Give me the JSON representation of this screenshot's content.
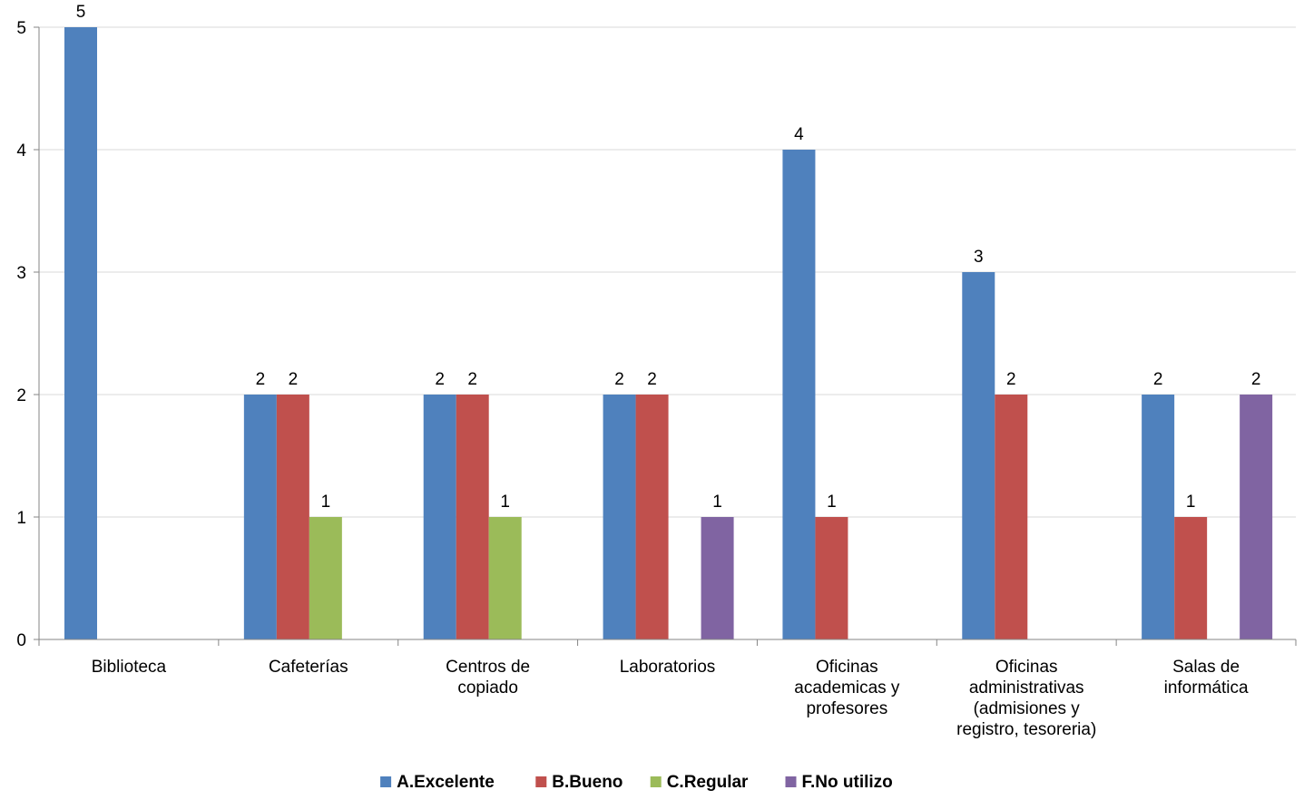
{
  "chart_data": {
    "type": "bar",
    "categories": [
      [
        "Biblioteca"
      ],
      [
        "Cafeterías"
      ],
      [
        "Centros de",
        "copiado"
      ],
      [
        "Laboratorios"
      ],
      [
        "Oficinas",
        "academicas y",
        "profesores"
      ],
      [
        "Oficinas",
        "administrativas",
        "(admisiones y",
        "registro, tesoreria)"
      ],
      [
        "Salas de",
        "informática"
      ]
    ],
    "series": [
      {
        "name": "A.Excelente",
        "color": "#4F81BD",
        "values": [
          5,
          2,
          2,
          2,
          4,
          3,
          2
        ]
      },
      {
        "name": "B.Bueno",
        "color": "#C0504D",
        "values": [
          null,
          2,
          2,
          2,
          1,
          2,
          1
        ]
      },
      {
        "name": "C.Regular",
        "color": "#9BBB59",
        "values": [
          null,
          1,
          1,
          null,
          null,
          null,
          null
        ]
      },
      {
        "name": "F.No utilizo",
        "color": "#8064A2",
        "values": [
          null,
          null,
          null,
          1,
          null,
          null,
          2
        ]
      }
    ],
    "ylim": [
      0,
      5
    ],
    "yticks": [
      "0",
      "1",
      "2",
      "3",
      "4",
      "5"
    ],
    "grid": true,
    "legend_position": "bottom",
    "xlabel": "",
    "ylabel": "",
    "title": ""
  }
}
